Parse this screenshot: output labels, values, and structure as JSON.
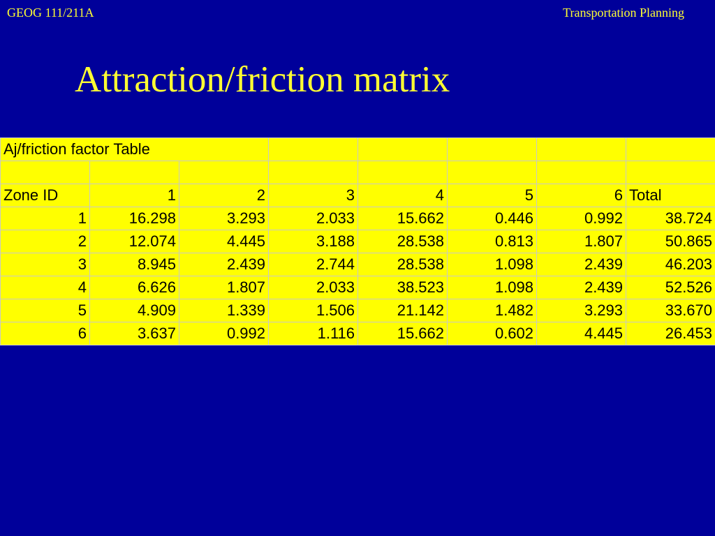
{
  "header": {
    "course": "GEOG 111/211A",
    "topic": "Transportation Planning"
  },
  "title": "Attraction/friction matrix",
  "table": {
    "caption": "Aj/friction factor  Table",
    "header": [
      "Zone ID",
      "1",
      "2",
      "3",
      "4",
      "5",
      "6",
      "Total"
    ],
    "rows": [
      [
        "1",
        "16.298",
        "3.293",
        "2.033",
        "15.662",
        "0.446",
        "0.992",
        "38.724"
      ],
      [
        "2",
        "12.074",
        "4.445",
        "3.188",
        "28.538",
        "0.813",
        "1.807",
        "50.865"
      ],
      [
        "3",
        "8.945",
        "2.439",
        "2.744",
        "28.538",
        "1.098",
        "2.439",
        "46.203"
      ],
      [
        "4",
        "6.626",
        "1.807",
        "2.033",
        "38.523",
        "1.098",
        "2.439",
        "52.526"
      ],
      [
        "5",
        "4.909",
        "1.339",
        "1.506",
        "21.142",
        "1.482",
        "3.293",
        "33.670"
      ],
      [
        "6",
        "3.637",
        "0.992",
        "1.116",
        "15.662",
        "0.602",
        "4.445",
        "26.453"
      ]
    ]
  }
}
